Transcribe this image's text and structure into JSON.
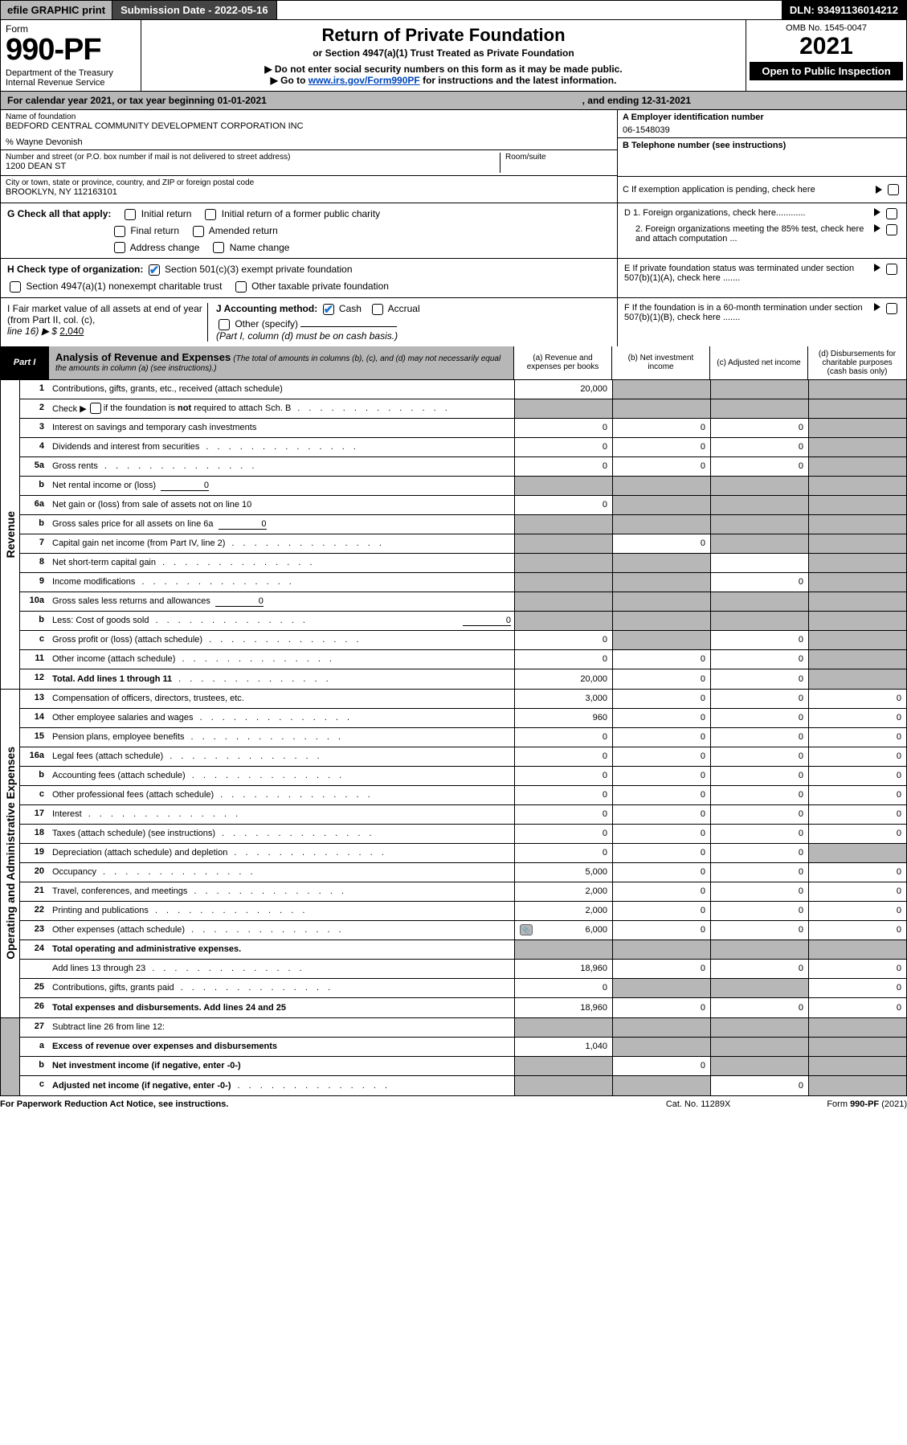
{
  "colors": {
    "header_gray": "#b7b7b7",
    "dark_bar": "#444444",
    "black": "#000000",
    "link": "#0047bb",
    "check_blue": "#1976d2"
  },
  "topbar": {
    "efile": "efile GRAPHIC print",
    "sub_date_label": "Submission Date - 2022-05-16",
    "dln": "DLN: 93491136014212"
  },
  "header": {
    "form_label": "Form",
    "form_no": "990-PF",
    "dept": "Department of the Treasury",
    "irs": "Internal Revenue Service",
    "title": "Return of Private Foundation",
    "subtitle": "or Section 4947(a)(1) Trust Treated as Private Foundation",
    "note1": "▶ Do not enter social security numbers on this form as it may be made public.",
    "note2_pre": "▶ Go to ",
    "note2_link": "www.irs.gov/Form990PF",
    "note2_post": " for instructions and the latest information.",
    "omb": "OMB No. 1545-0047",
    "year": "2021",
    "open": "Open to Public Inspection"
  },
  "ty_row": {
    "text_pre": "For calendar year 2021, or tax year beginning 01-01-2021",
    "text_mid": ", and ending 12-31-2021"
  },
  "info_left": {
    "name_label": "Name of foundation",
    "name": "BEDFORD CENTRAL COMMUNITY DEVELOPMENT CORPORATION INC",
    "care_of": "% Wayne Devonish",
    "addr_label": "Number and street (or P.O. box number if mail is not delivered to street address)",
    "addr": "1200 DEAN ST",
    "room_label": "Room/suite",
    "city_label": "City or town, state or province, country, and ZIP or foreign postal code",
    "city": "BROOKLYN, NY  112163101"
  },
  "info_right": {
    "a_label": "A Employer identification number",
    "a_val": "06-1548039",
    "b_label": "B Telephone number (see instructions)",
    "c_label": "C If exemption application is pending, check here",
    "d1": "D 1. Foreign organizations, check here............",
    "d2": "2. Foreign organizations meeting the 85% test, check here and attach computation ...",
    "e": "E  If private foundation status was terminated under section 507(b)(1)(A), check here .......",
    "f": "F  If the foundation is in a 60-month termination under section 507(b)(1)(B), check here .......",
    "f_arrow": "▶"
  },
  "g_block": {
    "g_label": "G Check all that apply:",
    "initial": "Initial return",
    "final": "Final return",
    "address": "Address change",
    "initial_former": "Initial return of a former public charity",
    "amended": "Amended return",
    "name_change": "Name change"
  },
  "h_block": {
    "h_label": "H Check type of organization:",
    "c3": "Section 501(c)(3) exempt private foundation",
    "trust": "Section 4947(a)(1) nonexempt charitable trust",
    "other_tax": "Other taxable private foundation"
  },
  "i_block": {
    "i_label": "I Fair market value of all assets at end of year (from Part II, col. (c),",
    "line16": "line 16) ▶ $",
    "val": "2,040"
  },
  "j_block": {
    "j_label": "J Accounting method:",
    "cash": "Cash",
    "accrual": "Accrual",
    "other": "Other (specify)",
    "note": "(Part I, column (d) must be on cash basis.)"
  },
  "part1": {
    "badge": "Part I",
    "title": "Analysis of Revenue and Expenses",
    "title_note": "(The total of amounts in columns (b), (c), and (d) may not necessarily equal the amounts in column (a) (see instructions).)",
    "cols": {
      "a": "(a)   Revenue and expenses per books",
      "b": "(b)   Net investment income",
      "c": "(c)   Adjusted net income",
      "d": "(d)  Disbursements for charitable purposes (cash basis only)"
    }
  },
  "side_labels": {
    "rev": "Revenue",
    "exp": "Operating and Administrative Expenses"
  },
  "rows": {
    "r1": {
      "num": "1",
      "desc": "Contributions, gifts, grants, etc., received (attach schedule)",
      "a": "20,000",
      "b_shade": true,
      "c_shade": true,
      "d_shade": true
    },
    "r2": {
      "num": "2",
      "desc": "Check ▶",
      "desc2": " if the foundation is not required to attach Sch. B",
      "dots": true,
      "a_shade": true,
      "b_shade": true,
      "c_shade": true,
      "d_shade": true,
      "checkbox": true
    },
    "r3": {
      "num": "3",
      "desc": "Interest on savings and temporary cash investments",
      "a": "0",
      "b": "0",
      "c": "0",
      "d_shade": true
    },
    "r4": {
      "num": "4",
      "desc": "Dividends and interest from securities",
      "dots": true,
      "a": "0",
      "b": "0",
      "c": "0",
      "d_shade": true
    },
    "r5a": {
      "num": "5a",
      "desc": "Gross rents",
      "dots": true,
      "a": "0",
      "b": "0",
      "c": "0",
      "d_shade": true
    },
    "r5b": {
      "num": "b",
      "desc": "Net rental income or (loss)",
      "inline": "0",
      "a_shade": true,
      "b_shade": true,
      "c_shade": true,
      "d_shade": true
    },
    "r6a": {
      "num": "6a",
      "desc": "Net gain or (loss) from sale of assets not on line 10",
      "a": "0",
      "b_shade": true,
      "c_shade": true,
      "d_shade": true
    },
    "r6b": {
      "num": "b",
      "desc": "Gross sales price for all assets on line 6a",
      "inline": "0",
      "a_shade": true,
      "b_shade": true,
      "c_shade": true,
      "d_shade": true
    },
    "r7": {
      "num": "7",
      "desc": "Capital gain net income (from Part IV, line 2)",
      "dots": true,
      "a_shade": true,
      "b": "0",
      "c_shade": true,
      "d_shade": true
    },
    "r8": {
      "num": "8",
      "desc": "Net short-term capital gain",
      "dots": true,
      "a_shade": true,
      "b_shade": true,
      "c_shade": false,
      "d_shade": true
    },
    "r9": {
      "num": "9",
      "desc": "Income modifications",
      "dots": true,
      "a_shade": true,
      "b_shade": true,
      "c": "0",
      "d_shade": true
    },
    "r10a": {
      "num": "10a",
      "desc": "Gross sales less returns and allowances",
      "inline": "0",
      "a_shade": true,
      "b_shade": true,
      "c_shade": true,
      "d_shade": true
    },
    "r10b": {
      "num": "b",
      "desc": "Less: Cost of goods sold",
      "dots": true,
      "inline": "0",
      "a_shade": true,
      "b_shade": true,
      "c_shade": true,
      "d_shade": true
    },
    "r10c": {
      "num": "c",
      "desc": "Gross profit or (loss) (attach schedule)",
      "dots": true,
      "a": "0",
      "b_shade": true,
      "c": "0",
      "d_shade": true
    },
    "r11": {
      "num": "11",
      "desc": "Other income (attach schedule)",
      "dots": true,
      "a": "0",
      "b": "0",
      "c": "0",
      "d_shade": true
    },
    "r12": {
      "num": "12",
      "desc": "Total. Add lines 1 through 11",
      "bold": true,
      "dots": true,
      "a": "20,000",
      "b": "0",
      "c": "0",
      "d_shade": true
    },
    "r13": {
      "num": "13",
      "desc": "Compensation of officers, directors, trustees, etc.",
      "a": "3,000",
      "b": "0",
      "c": "0",
      "d": "0"
    },
    "r14": {
      "num": "14",
      "desc": "Other employee salaries and wages",
      "dots": true,
      "a": "960",
      "b": "0",
      "c": "0",
      "d": "0"
    },
    "r15": {
      "num": "15",
      "desc": "Pension plans, employee benefits",
      "dots": true,
      "a": "0",
      "b": "0",
      "c": "0",
      "d": "0"
    },
    "r16a": {
      "num": "16a",
      "desc": "Legal fees (attach schedule)",
      "dots": true,
      "a": "0",
      "b": "0",
      "c": "0",
      "d": "0"
    },
    "r16b": {
      "num": "b",
      "desc": "Accounting fees (attach schedule)",
      "dots": true,
      "a": "0",
      "b": "0",
      "c": "0",
      "d": "0"
    },
    "r16c": {
      "num": "c",
      "desc": "Other professional fees (attach schedule)",
      "dots": true,
      "a": "0",
      "b": "0",
      "c": "0",
      "d": "0"
    },
    "r17": {
      "num": "17",
      "desc": "Interest",
      "dots": true,
      "a": "0",
      "b": "0",
      "c": "0",
      "d": "0"
    },
    "r18": {
      "num": "18",
      "desc": "Taxes (attach schedule) (see instructions)",
      "dots": true,
      "a": "0",
      "b": "0",
      "c": "0",
      "d": "0"
    },
    "r19": {
      "num": "19",
      "desc": "Depreciation (attach schedule) and depletion",
      "dots": true,
      "a": "0",
      "b": "0",
      "c": "0",
      "d_shade": true
    },
    "r20": {
      "num": "20",
      "desc": "Occupancy",
      "dots": true,
      "a": "5,000",
      "b": "0",
      "c": "0",
      "d": "0"
    },
    "r21": {
      "num": "21",
      "desc": "Travel, conferences, and meetings",
      "dots": true,
      "a": "2,000",
      "b": "0",
      "c": "0",
      "d": "0"
    },
    "r22": {
      "num": "22",
      "desc": "Printing and publications",
      "dots": true,
      "a": "2,000",
      "b": "0",
      "c": "0",
      "d": "0"
    },
    "r23": {
      "num": "23",
      "desc": "Other expenses (attach schedule)",
      "dots": true,
      "icon": true,
      "a": "6,000",
      "b": "0",
      "c": "0",
      "d": "0"
    },
    "r24": {
      "num": "24",
      "desc": "Total operating and administrative expenses.",
      "bold": true,
      "a_shade": true,
      "b_shade": true,
      "c_shade": true,
      "d_shade": true
    },
    "r24b": {
      "num": "",
      "desc": "Add lines 13 through 23",
      "dots": true,
      "a": "18,960",
      "b": "0",
      "c": "0",
      "d": "0"
    },
    "r25": {
      "num": "25",
      "desc": "Contributions, gifts, grants paid",
      "dots": true,
      "a": "0",
      "b_shade": true,
      "c_shade": true,
      "d": "0"
    },
    "r26": {
      "num": "26",
      "desc": "Total expenses and disbursements. Add lines 24 and 25",
      "bold": true,
      "a": "18,960",
      "b": "0",
      "c": "0",
      "d": "0"
    },
    "r27": {
      "num": "27",
      "desc": "Subtract line 26 from line 12:",
      "a_shade": true,
      "b_shade": true,
      "c_shade": true,
      "d_shade": true
    },
    "r27a": {
      "num": "a",
      "desc": "Excess of revenue over expenses and disbursements",
      "bold": true,
      "a": "1,040",
      "b_shade": true,
      "c_shade": true,
      "d_shade": true
    },
    "r27b": {
      "num": "b",
      "desc": "Net investment income (if negative, enter -0-)",
      "bold": true,
      "a_shade": true,
      "b": "0",
      "c_shade": true,
      "d_shade": true
    },
    "r27c": {
      "num": "c",
      "desc": "Adjusted net income (if negative, enter -0-)",
      "bold": true,
      "dots": true,
      "a_shade": true,
      "b_shade": true,
      "c": "0",
      "d_shade": true
    }
  },
  "footer": {
    "left": "For Paperwork Reduction Act Notice, see instructions.",
    "mid": "Cat. No. 11289X",
    "right": "Form 990-PF (2021)"
  }
}
